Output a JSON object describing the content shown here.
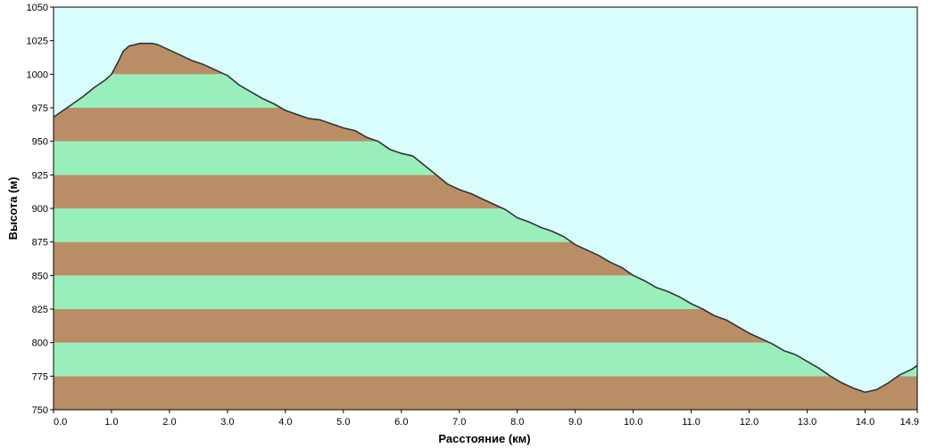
{
  "chart_data": {
    "type": "area",
    "title": "",
    "xlabel": "Расстояние  (км)",
    "ylabel": "Высота (м)",
    "xlim": [
      0,
      14.9
    ],
    "ylim": [
      750,
      1050
    ],
    "x_ticks": [
      "0.0",
      "1.0",
      "2.0",
      "3.0",
      "4.0",
      "5.0",
      "6.0",
      "7.0",
      "8.0",
      "9.0",
      "10.0",
      "11.0",
      "12.0",
      "13.0",
      "14.0",
      "14.9"
    ],
    "y_ticks": [
      "750",
      "775",
      "800",
      "825",
      "850",
      "875",
      "900",
      "925",
      "950",
      "975",
      "1000",
      "1025",
      "1050"
    ],
    "band_step": 25,
    "colors": {
      "sky": "#d9fdfd",
      "band_dark": "#b98e66",
      "band_light": "#99efbb",
      "line": "#333333"
    },
    "series": [
      {
        "x": [
          0.0,
          0.1,
          0.3,
          0.5,
          0.7,
          0.9,
          1.0,
          1.1,
          1.2,
          1.3,
          1.4,
          1.5,
          1.6,
          1.7,
          1.8,
          1.9,
          2.0,
          2.2,
          2.4,
          2.6,
          2.8,
          3.0,
          3.2,
          3.4,
          3.6,
          3.8,
          4.0,
          4.2,
          4.4,
          4.6,
          4.8,
          5.0,
          5.2,
          5.4,
          5.6,
          5.8,
          6.0,
          6.2,
          6.4,
          6.6,
          6.8,
          7.0,
          7.2,
          7.4,
          7.6,
          7.8,
          8.0,
          8.2,
          8.4,
          8.6,
          8.8,
          9.0,
          9.2,
          9.4,
          9.6,
          9.8,
          10.0,
          10.2,
          10.4,
          10.6,
          10.8,
          11.0,
          11.2,
          11.4,
          11.6,
          11.8,
          12.0,
          12.2,
          12.4,
          12.6,
          12.8,
          13.0,
          13.2,
          13.4,
          13.6,
          13.8,
          14.0,
          14.2,
          14.4,
          14.6,
          14.8,
          14.9
        ],
        "y": [
          968,
          971,
          977,
          983,
          990,
          996,
          1000,
          1008,
          1017,
          1021,
          1022,
          1023,
          1023,
          1023,
          1022,
          1020,
          1018,
          1014,
          1010,
          1007,
          1003,
          999,
          992,
          987,
          982,
          978,
          973,
          970,
          967,
          966,
          963,
          960,
          958,
          953,
          950,
          944,
          941,
          939,
          932,
          925,
          918,
          914,
          911,
          907,
          903,
          899,
          893,
          890,
          886,
          883,
          879,
          873,
          869,
          865,
          860,
          856,
          850,
          846,
          841,
          838,
          834,
          829,
          825,
          820,
          817,
          812,
          807,
          803,
          799,
          794,
          791,
          786,
          781,
          775,
          770,
          766,
          763,
          765,
          770,
          776,
          780,
          783
        ]
      }
    ]
  }
}
